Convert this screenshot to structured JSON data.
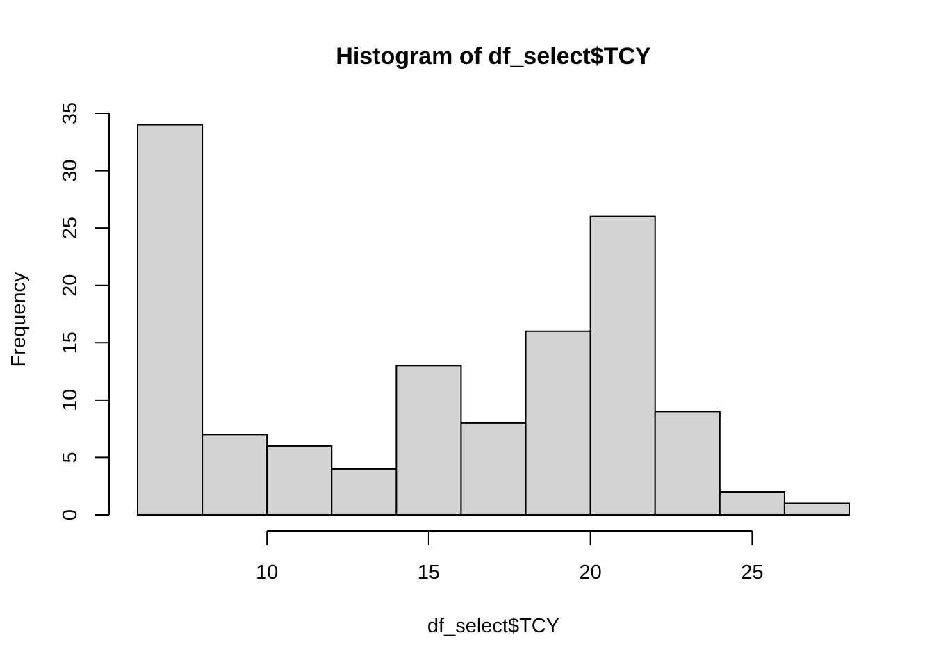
{
  "chart_data": {
    "type": "bar",
    "title": "Histogram of df_select$TCY",
    "xlabel": "df_select$TCY",
    "ylabel": "Frequency",
    "bins": [
      {
        "x0": 6,
        "x1": 8,
        "count": 34
      },
      {
        "x0": 8,
        "x1": 10,
        "count": 7
      },
      {
        "x0": 10,
        "x1": 12,
        "count": 6
      },
      {
        "x0": 12,
        "x1": 14,
        "count": 4
      },
      {
        "x0": 14,
        "x1": 16,
        "count": 13
      },
      {
        "x0": 16,
        "x1": 18,
        "count": 8
      },
      {
        "x0": 18,
        "x1": 20,
        "count": 16
      },
      {
        "x0": 20,
        "x1": 22,
        "count": 26
      },
      {
        "x0": 22,
        "x1": 24,
        "count": 9
      },
      {
        "x0": 24,
        "x1": 26,
        "count": 2
      },
      {
        "x0": 26,
        "x1": 28,
        "count": 1
      }
    ],
    "xlim": [
      6,
      28
    ],
    "ylim": [
      0,
      35
    ],
    "xticks": [
      10,
      15,
      20,
      25
    ],
    "yticks": [
      0,
      5,
      10,
      15,
      20,
      25,
      30,
      35
    ],
    "grid": false,
    "legend": "none",
    "colors": {
      "bar_fill": "#d3d3d3",
      "bar_stroke": "#000000"
    }
  }
}
